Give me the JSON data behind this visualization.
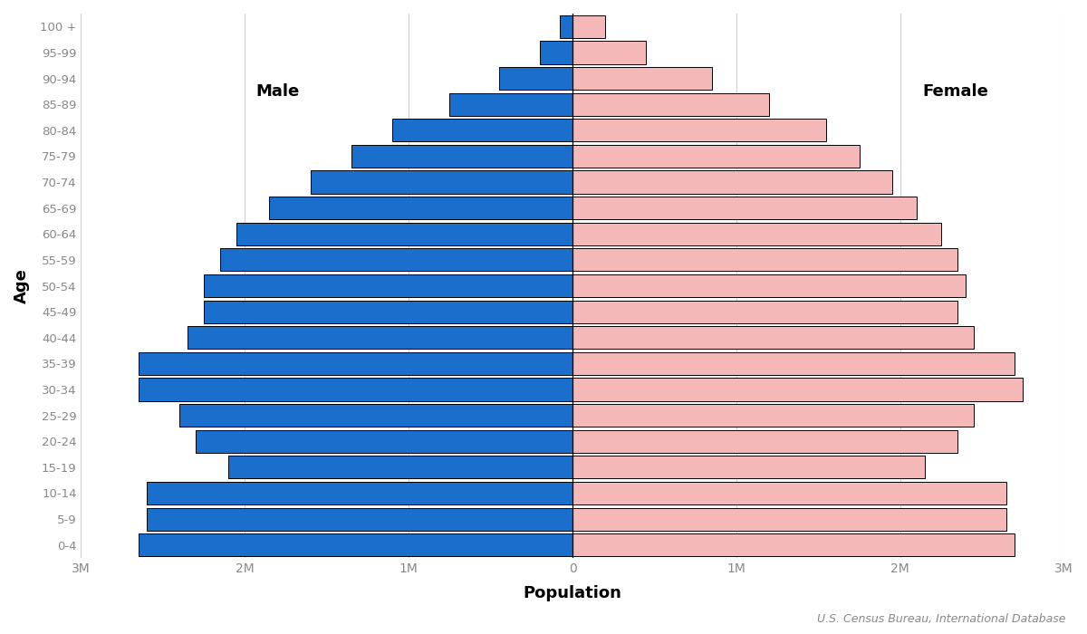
{
  "age_groups": [
    "0-4",
    "5-9",
    "10-14",
    "15-19",
    "20-24",
    "25-29",
    "30-34",
    "35-39",
    "40-44",
    "45-49",
    "50-54",
    "55-59",
    "60-64",
    "65-69",
    "70-74",
    "75-79",
    "80-84",
    "85-89",
    "90-94",
    "95-99",
    "100 +"
  ],
  "male": [
    2650000,
    2600000,
    2600000,
    2100000,
    2300000,
    2400000,
    2650000,
    2650000,
    2350000,
    2250000,
    2250000,
    2150000,
    2050000,
    1850000,
    1600000,
    1350000,
    1100000,
    750000,
    450000,
    200000,
    80000
  ],
  "female": [
    2700000,
    2650000,
    2650000,
    2150000,
    2350000,
    2450000,
    2750000,
    2700000,
    2450000,
    2350000,
    2400000,
    2350000,
    2250000,
    2100000,
    1950000,
    1750000,
    1550000,
    1200000,
    850000,
    450000,
    200000
  ],
  "male_color": "#1a6fcc",
  "female_color": "#f4b8b8",
  "male_label": "Male",
  "female_label": "Female",
  "xlabel": "Population",
  "ylabel": "Age",
  "xlim": 3000000,
  "source_text": "U.S. Census Bureau, International Database",
  "bg_color": "#ffffff",
  "bar_edge_color": "#000000",
  "grid_color": "#d0d0d0",
  "tick_color": "#888888",
  "label_color": "#000000"
}
